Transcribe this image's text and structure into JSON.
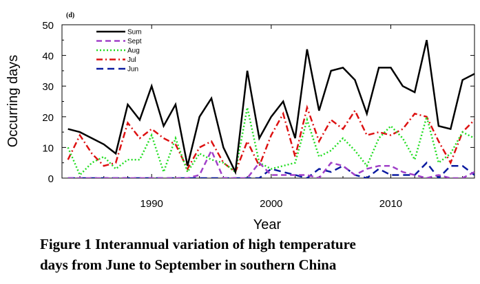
{
  "panel_label": "(d)",
  "caption_line1": "Figure 1  Interannual variation of high temperature",
  "caption_line2": "days from June to September in southern China",
  "chart_data": {
    "type": "line",
    "xlabel": "Year",
    "ylabel": "Occurring days",
    "xlim": [
      1982.5,
      2017
    ],
    "ylim": [
      0,
      50
    ],
    "xticks": [
      1990,
      2000,
      2010
    ],
    "yticks": [
      0,
      10,
      20,
      30,
      40,
      50
    ],
    "legend_position": "top-left",
    "x": [
      1983,
      1984,
      1985,
      1986,
      1987,
      1988,
      1989,
      1990,
      1991,
      1992,
      1993,
      1994,
      1995,
      1996,
      1997,
      1998,
      1999,
      2000,
      2001,
      2002,
      2003,
      2004,
      2005,
      2006,
      2007,
      2008,
      2009,
      2010,
      2011,
      2012,
      2013,
      2014,
      2015,
      2016,
      2017
    ],
    "series": [
      {
        "name": "Sum",
        "color": "#000000",
        "dash": "solid",
        "values": [
          16,
          15,
          13,
          11,
          8,
          24,
          19,
          30,
          17,
          24,
          4,
          20,
          26,
          10,
          2,
          35,
          13,
          20,
          25,
          13,
          42,
          22,
          35,
          36,
          32,
          21,
          36,
          36,
          30,
          28,
          45,
          17,
          16,
          32,
          34
        ]
      },
      {
        "name": "Sept",
        "color": "#a040c8",
        "dash": "dash",
        "values": [
          0,
          0,
          0,
          0,
          0,
          0,
          0,
          0,
          0,
          0,
          0,
          1,
          9,
          0,
          0,
          0,
          5,
          1,
          1,
          1,
          1,
          0,
          5,
          4,
          1,
          3,
          4,
          4,
          2,
          1,
          0,
          1,
          0,
          0,
          2
        ]
      },
      {
        "name": "Aug",
        "color": "#22dd22",
        "dash": "dot",
        "values": [
          10,
          1,
          5,
          7,
          3,
          6,
          6,
          14,
          2,
          13,
          2,
          8,
          6,
          5,
          2,
          23,
          5,
          3,
          4,
          5,
          19,
          7,
          9,
          13,
          9,
          4,
          13,
          17,
          13,
          6,
          20,
          5,
          8,
          15,
          13
        ]
      },
      {
        "name": "Jul",
        "color": "#dd1111",
        "dash": "dashdot",
        "values": [
          6,
          14,
          8,
          4,
          5,
          18,
          13,
          16,
          13,
          11,
          3,
          10,
          12,
          5,
          2,
          12,
          4,
          14,
          21,
          7,
          23,
          12,
          19,
          16,
          22,
          14,
          15,
          14,
          16,
          21,
          20,
          12,
          5,
          15,
          19
        ]
      },
      {
        "name": "Jun",
        "color": "#0a1aa0",
        "dash": "longdash",
        "values": [
          0,
          0,
          0,
          0,
          0,
          0,
          0,
          0,
          0,
          0,
          0,
          0,
          0,
          0,
          0,
          0,
          0,
          3,
          2,
          1,
          0,
          3,
          2,
          4,
          1,
          0,
          3,
          1,
          1,
          1,
          5,
          0,
          4,
          4,
          1
        ]
      }
    ]
  }
}
